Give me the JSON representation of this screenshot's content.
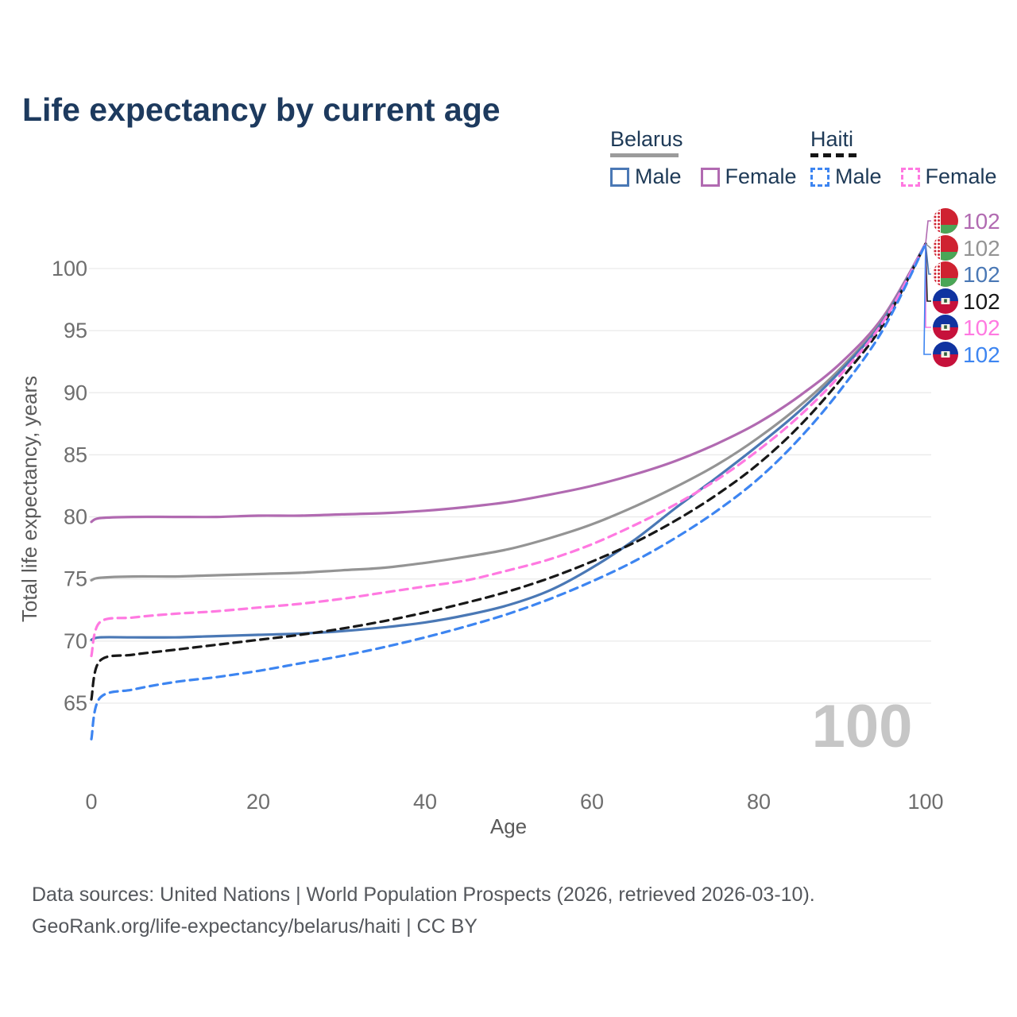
{
  "title": "Life expectancy by current age",
  "legend": {
    "groups": [
      {
        "name": "Belarus",
        "underline_style": "solid",
        "underline_color": "#9b9b9b",
        "items": [
          {
            "label": "Male",
            "color": "#4a78b5",
            "dashed": false
          },
          {
            "label": "Female",
            "color": "#b16ab1",
            "dashed": false
          }
        ]
      },
      {
        "name": "Haiti",
        "underline_style": "dashed",
        "underline_color": "#141414",
        "items": [
          {
            "label": "Male",
            "color": "#3d85f1",
            "dashed": true
          },
          {
            "label": "Female",
            "color": "#ff79e1",
            "dashed": true
          }
        ]
      }
    ]
  },
  "chart_data": {
    "type": "line",
    "title": "Life expectancy by current age",
    "xlabel": "Age",
    "ylabel": "Total life expectancy, years",
    "xticks": [
      0,
      20,
      40,
      60,
      80,
      100
    ],
    "yticks": [
      65,
      70,
      75,
      80,
      85,
      90,
      95,
      100
    ],
    "xlim": [
      0,
      100.5
    ],
    "ylim": [
      61.5,
      103.6
    ],
    "grid": "horizontal-only",
    "legend_position": "top-right",
    "watermark": "100",
    "x": [
      0,
      1,
      5,
      10,
      15,
      20,
      25,
      30,
      35,
      40,
      45,
      50,
      55,
      60,
      65,
      70,
      75,
      80,
      85,
      90,
      95,
      100
    ],
    "series": [
      {
        "name": "Belarus Female",
        "country": "Belarus",
        "sex": "Female",
        "flag": "belarus",
        "color": "#b16ab1",
        "dashed": false,
        "end_label": "102",
        "values": [
          79.6,
          79.9,
          80.0,
          80.0,
          80.0,
          80.1,
          80.1,
          80.2,
          80.3,
          80.5,
          80.8,
          81.2,
          81.8,
          82.5,
          83.4,
          84.5,
          85.9,
          87.6,
          89.8,
          92.5,
          96.2,
          102
        ]
      },
      {
        "name": "Belarus",
        "country": "Belarus",
        "sex": "Both",
        "flag": "belarus",
        "color": "#949494",
        "dashed": false,
        "end_label": "102",
        "values": [
          74.9,
          75.1,
          75.2,
          75.2,
          75.3,
          75.4,
          75.5,
          75.7,
          75.9,
          76.3,
          76.8,
          77.4,
          78.3,
          79.4,
          80.8,
          82.4,
          84.2,
          86.4,
          89.0,
          92.1,
          96.0,
          102
        ]
      },
      {
        "name": "Belarus Male",
        "country": "Belarus",
        "sex": "Male",
        "flag": "belarus",
        "color": "#4a78b5",
        "dashed": false,
        "end_label": "102",
        "values": [
          70.1,
          70.3,
          70.3,
          70.3,
          70.4,
          70.5,
          70.6,
          70.8,
          71.1,
          71.5,
          72.1,
          72.9,
          74.1,
          75.9,
          78.1,
          80.7,
          83.2,
          85.8,
          88.6,
          91.9,
          95.9,
          102
        ]
      },
      {
        "name": "Haiti",
        "country": "Haiti",
        "sex": "Both",
        "flag": "haiti",
        "color": "#181818",
        "dashed": true,
        "end_label": "102",
        "values": [
          65.3,
          68.4,
          68.9,
          69.3,
          69.7,
          70.1,
          70.5,
          71.0,
          71.6,
          72.3,
          73.1,
          74.0,
          75.1,
          76.4,
          77.9,
          79.7,
          81.8,
          84.3,
          87.4,
          91.2,
          95.6,
          102
        ]
      },
      {
        "name": "Haiti Female",
        "country": "Haiti",
        "sex": "Female",
        "flag": "haiti",
        "color": "#ff79e1",
        "dashed": true,
        "end_label": "102",
        "values": [
          68.8,
          71.5,
          71.9,
          72.2,
          72.4,
          72.7,
          73.0,
          73.4,
          73.9,
          74.4,
          74.9,
          75.7,
          76.6,
          77.8,
          79.3,
          81.0,
          83.0,
          85.4,
          88.2,
          91.6,
          95.8,
          102
        ]
      },
      {
        "name": "Haiti Male",
        "country": "Haiti",
        "sex": "Male",
        "flag": "haiti",
        "color": "#3d85f1",
        "dashed": true,
        "end_label": "102",
        "values": [
          62.1,
          65.4,
          66.1,
          66.7,
          67.1,
          67.6,
          68.2,
          68.8,
          69.5,
          70.3,
          71.2,
          72.2,
          73.4,
          74.8,
          76.4,
          78.3,
          80.5,
          83.1,
          86.4,
          90.4,
          95.2,
          102
        ]
      }
    ]
  },
  "footer": {
    "line1": "Data sources: United Nations | World Population Prospects (2026, retrieved 2026-03-10).",
    "line2": "GeoRank.org/life-expectancy/belarus/haiti | CC BY"
  }
}
